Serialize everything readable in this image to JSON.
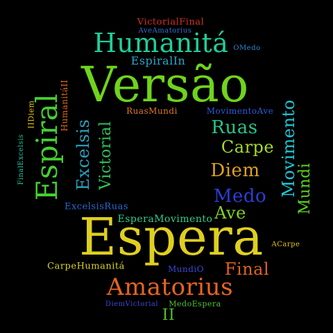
{
  "words": {
    "versao": "Versão",
    "espera": "Espera",
    "espiral": "Espiral",
    "humanita": "Humanitá",
    "amatorius": "Amatorius",
    "movimento": "Movimento",
    "excelsis": "Excelsis",
    "victorial": "Victorial",
    "ruas": "Ruas",
    "carpe": "Carpe",
    "diem": "Diem",
    "medo": "Medo",
    "mundi": "Mundi",
    "ave": "Ave",
    "final": "Final",
    "ii": "II",
    "victorialfinal": "VictorialFinal",
    "aveamatorius": "AveAmatorius",
    "omedo": "OMedo",
    "espiralin": "EspiralIn",
    "humanitaii": "HumanitáII",
    "iidiem": "IIDiem",
    "finalexcelsis": "FinalExcelsis",
    "ruasmundi": "RuasMundi",
    "movimentoave": "MovimentoAve",
    "excelsisruas": "ExcelsisRuas",
    "esperamovimento": "EsperaMovimento",
    "acarpe": "ACarpe",
    "carpehumanita": "CarpeHumanitá",
    "mundio": "MundiO",
    "diemvictorial": "DiemVictorial",
    "medoespera": "MedoEspera"
  },
  "colors": {
    "background": "#000000",
    "versao": "#6fd41b",
    "espera": "#dfcf20",
    "espiral": "#45cf32",
    "humanita": "#1ecf9a",
    "amatorius": "#e8641f",
    "movimento": "#1ec8d6",
    "excelsis": "#2aa3bf",
    "victorial": "#2ec45a",
    "ruas": "#25c48c",
    "carpe": "#a6d92a",
    "diem": "#e0a11c",
    "medo": "#2a3fd8",
    "mundi": "#5ad21d",
    "ave": "#82d41d",
    "final": "#e0621e",
    "ii": "#56c21e",
    "victorialfinal": "#d8311e",
    "aveamatorius": "#2a74d8",
    "omedo": "#2a8ad0",
    "espiralin": "#2aa7c8",
    "humanitaii": "#de6a1c",
    "iidiem": "#dfc51f",
    "finalexcelsis": "#21c6a0",
    "ruasmundi": "#e0781c",
    "movimentoave": "#2a5ce0",
    "excelsisruas": "#2a6ad4",
    "esperamovimento": "#2ccf8c",
    "acarpe": "#dfc01f",
    "carpehumanita": "#d8d21e",
    "mundio": "#3848d4",
    "diemvictorial": "#3a47d8",
    "medoespera": "#4fc72c"
  }
}
